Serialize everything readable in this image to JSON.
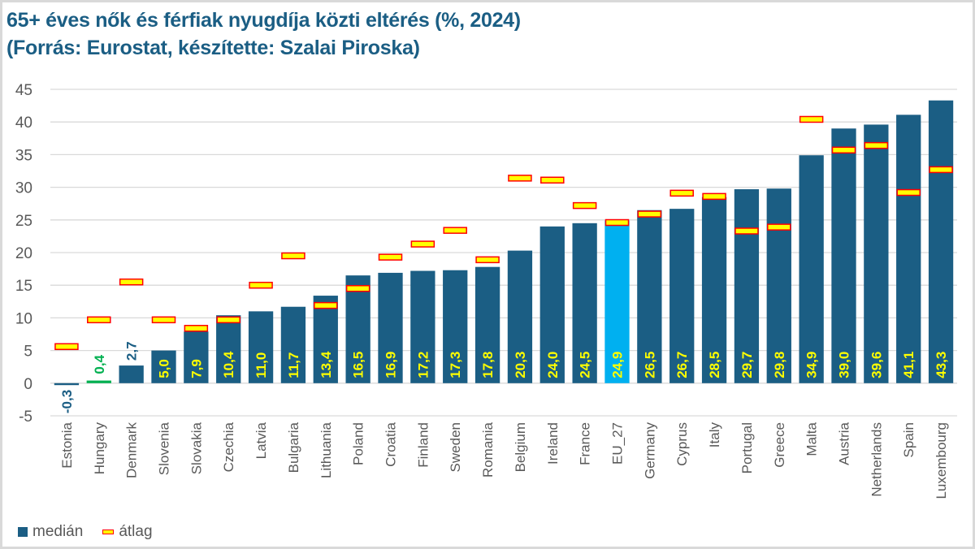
{
  "title_line1": "65+ éves nők és férfiak nyugdíja közti eltérés (%, 2024)",
  "title_line2": "(Forrás: Eurostat, készítette: Szalai Piroska)",
  "colors": {
    "bar": "#1b5e84",
    "highlight_eu": "#00b0f0",
    "highlight_hu": "#00b050",
    "label_inside": "#ffff00",
    "marker_fill": "#ffff00",
    "marker_border": "#ff0000",
    "grid": "#d9d9d9",
    "title": "#1b5e84"
  },
  "chart_data": {
    "type": "bar",
    "title": "65+ éves nők és férfiak nyugdíja közti eltérés (%, 2024)",
    "subtitle": "(Forrás: Eurostat, készítette: Szalai Piroska)",
    "xlabel": "",
    "ylabel": "",
    "ylim": [
      -5,
      45
    ],
    "yticks": [
      -5,
      0,
      5,
      10,
      15,
      20,
      25,
      30,
      35,
      40,
      45
    ],
    "grid": true,
    "legend_position": "bottom-left",
    "categories": [
      "Estonia",
      "Hungary",
      "Denmark",
      "Slovenia",
      "Slovakia",
      "Czechia",
      "Latvia",
      "Bulgaria",
      "Lithuania",
      "Poland",
      "Croatia",
      "Finland",
      "Sweden",
      "Romania",
      "Belgium",
      "Ireland",
      "France",
      "EU_27",
      "Germany",
      "Cyprus",
      "Italy",
      "Portugal",
      "Greece",
      "Malta",
      "Austria",
      "Netherlands",
      "Spain",
      "Luxembourg"
    ],
    "series": [
      {
        "name": "medián",
        "type": "bar",
        "values": [
          -0.3,
          0.4,
          2.7,
          5.0,
          7.9,
          10.4,
          11.0,
          11.7,
          13.4,
          16.5,
          16.9,
          17.2,
          17.3,
          17.8,
          20.3,
          24.0,
          24.5,
          24.9,
          26.5,
          26.7,
          28.5,
          29.7,
          29.8,
          34.9,
          39.0,
          39.6,
          41.1,
          43.3
        ],
        "labels": [
          "-0,3",
          "0,4",
          "2,7",
          "5,0",
          "7,9",
          "10,4",
          "11,0",
          "11,7",
          "13,4",
          "16,5",
          "16,9",
          "17,2",
          "17,3",
          "17,8",
          "20,3",
          "24,0",
          "24,5",
          "24,9",
          "26,5",
          "26,7",
          "28,5",
          "29,7",
          "29,8",
          "34,9",
          "39,0",
          "39,6",
          "41,1",
          "43,3"
        ]
      },
      {
        "name": "átlag",
        "type": "marker",
        "values": [
          5.6,
          9.7,
          15.5,
          9.7,
          8.4,
          9.7,
          15.0,
          19.5,
          11.9,
          14.5,
          19.3,
          21.3,
          23.4,
          18.9,
          31.4,
          31.1,
          27.2,
          24.6,
          25.9,
          29.1,
          28.6,
          23.3,
          23.9,
          40.4,
          35.7,
          36.4,
          29.2,
          32.7
        ]
      }
    ]
  },
  "legend": {
    "median_label": "medián",
    "atlag_label": "átlag"
  }
}
